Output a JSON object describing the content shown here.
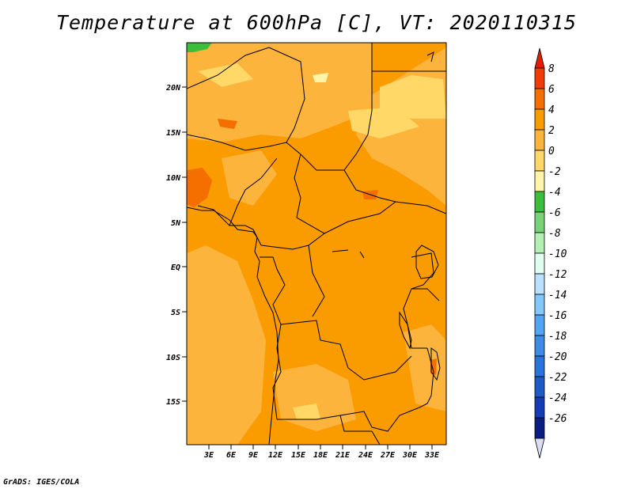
{
  "title": "Temperature at 600hPa [C], VT: 2020110315",
  "credit": "GrADS: IGES/COLA",
  "map": {
    "lat_ticks": [
      "20N",
      "15N",
      "10N",
      "5N",
      "EQ",
      "5S",
      "10S",
      "15S"
    ],
    "lon_ticks": [
      "3E",
      "6E",
      "9E",
      "12E",
      "15E",
      "18E",
      "21E",
      "24E",
      "27E",
      "30E",
      "33E"
    ]
  },
  "colorbar": {
    "levels": [
      "8",
      "6",
      "4",
      "2",
      "0",
      "-2",
      "-4",
      "-6",
      "-8",
      "-10",
      "-12",
      "-14",
      "-16",
      "-18",
      "-20",
      "-22",
      "-24",
      "-26"
    ],
    "colors": [
      "#e01e00",
      "#f03c00",
      "#f56e00",
      "#fa9b00",
      "#fdb43c",
      "#ffd868",
      "#fff4a8",
      "#3cbe3c",
      "#78d278",
      "#b4f0b4",
      "#e1fff0",
      "#bce1ff",
      "#82c8ff",
      "#50a5f5",
      "#3c8ce6",
      "#2873dc",
      "#1e5ac8",
      "#143cb4",
      "#0a1e82",
      "#dcdcf5"
    ]
  }
}
